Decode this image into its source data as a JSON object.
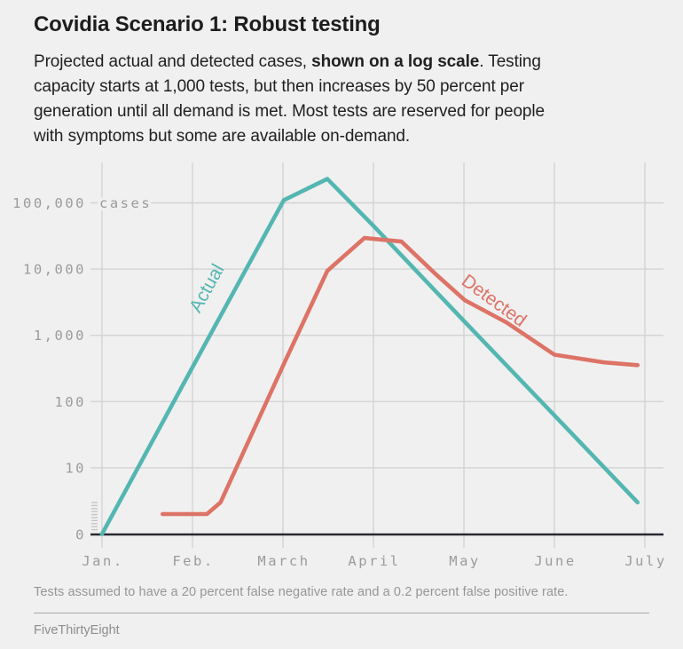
{
  "header": {
    "title": "Covidia Scenario 1: Robust testing",
    "subtitle": {
      "intro": "Projected actual and detected cases, ",
      "bold": "shown on a log scale",
      "line1_end": ". Testing",
      "line2": "capacity starts at 1,000 tests, but then increases by 50 percent per",
      "line3": "generation until all demand is met. Most tests are reserved for people",
      "line4": "with symptoms but some are available on-demand."
    }
  },
  "footer": {
    "footnote": "Tests assumed to have a 20 percent false negative rate and a 0.2 percent false positive rate.",
    "source": "FiveThirtyEight"
  },
  "chart_data": {
    "type": "line",
    "title": "Covidia Scenario 1: Robust testing",
    "x": {
      "unit": "month",
      "tick_labels": [
        "Jan.",
        "Feb.",
        "March",
        "April",
        "May",
        "June",
        "July"
      ],
      "range": [
        0,
        6
      ]
    },
    "y": {
      "scale": "log",
      "unit_label": "cases",
      "ticks": [
        {
          "label": "100,000",
          "value": 100000
        },
        {
          "label": "10,000",
          "value": 10000
        },
        {
          "label": "1,000",
          "value": 1000
        },
        {
          "label": "100",
          "value": 100
        },
        {
          "label": "10",
          "value": 10
        },
        {
          "label": "0",
          "value": 0
        }
      ],
      "axis_break_between_0_and_10": true
    },
    "grid": true,
    "legend_position": "inline-labels-on-lines",
    "series": [
      {
        "name": "Actual",
        "color": "#54b6b1",
        "points_month_value": [
          [
            0,
            1
          ],
          [
            1,
            330
          ],
          [
            2.01,
            110000
          ],
          [
            2.49,
            230000
          ],
          [
            3,
            45000
          ],
          [
            4,
            1650
          ],
          [
            5,
            62
          ],
          [
            5.92,
            3
          ]
        ]
      },
      {
        "name": "Detected",
        "color": "#dd7366",
        "points_month_value": [
          [
            0.67,
            2
          ],
          [
            1.16,
            2
          ],
          [
            1.31,
            3
          ],
          [
            2.01,
            370
          ],
          [
            2.49,
            9400
          ],
          [
            2.9,
            29500
          ],
          [
            3.31,
            26000
          ],
          [
            3.7,
            8100
          ],
          [
            4.01,
            3400
          ],
          [
            4.47,
            1570
          ],
          [
            5.0,
            510
          ],
          [
            5.55,
            390
          ],
          [
            5.92,
            355
          ]
        ]
      }
    ],
    "colors": {
      "background": "#f0f0f0",
      "gridline": "#d3d3d3",
      "baseline_axis": "#282832",
      "tick_text": "#9b9b9b"
    }
  }
}
